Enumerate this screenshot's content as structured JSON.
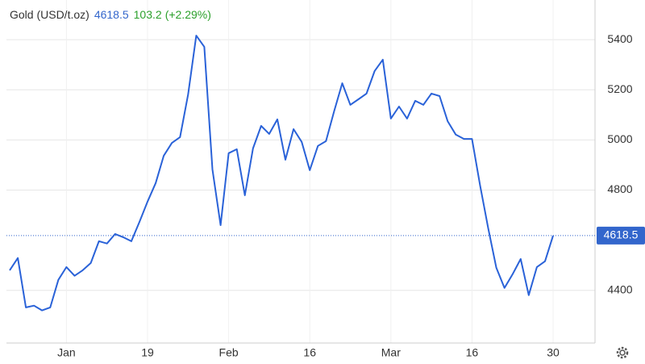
{
  "chart_data": {
    "type": "line",
    "title": "Gold (USD/t.oz)",
    "price": 4618.5,
    "change": 103.2,
    "change_pct": "(+2.29%)",
    "color": "#2a62d8",
    "grid": true,
    "categories": [
      null,
      null,
      null,
      null,
      null,
      null,
      null,
      "Jan",
      null,
      null,
      null,
      null,
      null,
      null,
      null,
      null,
      null,
      "19",
      null,
      null,
      null,
      null,
      null,
      null,
      null,
      null,
      null,
      "Feb",
      null,
      null,
      null,
      null,
      null,
      null,
      null,
      null,
      null,
      "16",
      null,
      null,
      null,
      null,
      null,
      null,
      null,
      null,
      null,
      "Mar",
      null,
      null,
      null,
      null,
      null,
      null,
      null,
      null,
      null,
      "16",
      null,
      null,
      null,
      null,
      null,
      null,
      null,
      null,
      null,
      "30"
    ],
    "values": [
      4480,
      4529,
      4332,
      4339,
      4320,
      4332,
      4442,
      4493,
      4458,
      4480,
      4509,
      4596,
      4587,
      4625,
      4612,
      4596,
      4673,
      4754,
      4828,
      4937,
      4988,
      5011,
      5181,
      5416,
      5371,
      4882,
      4660,
      4947,
      4963,
      4779,
      4966,
      5056,
      5024,
      5082,
      4921,
      5043,
      4992,
      4879,
      4976,
      4995,
      5114,
      5226,
      5140,
      5162,
      5185,
      5275,
      5320,
      5085,
      5133,
      5085,
      5156,
      5140,
      5185,
      5175,
      5075,
      5021,
      5004,
      5004,
      4818,
      4648,
      4490,
      4410,
      4464,
      4525,
      4381,
      4493,
      4516,
      4618.5
    ],
    "ylim": [
      4190,
      5558
    ],
    "yticks": [
      4400,
      4800,
      5000,
      5200,
      5400
    ]
  }
}
